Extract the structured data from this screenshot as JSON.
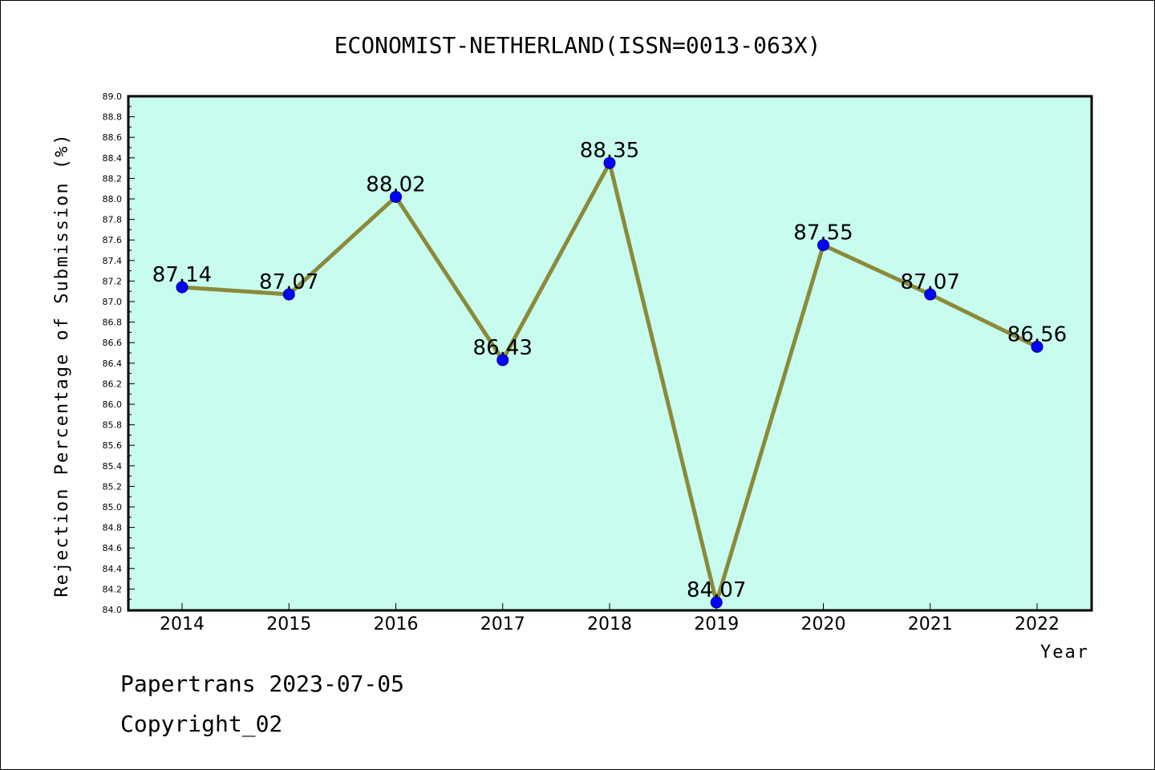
{
  "chart_data": {
    "type": "line",
    "title": "ECONOMIST-NETHERLAND(ISSN=0013-063X)",
    "xlabel": "Year",
    "ylabel": "Rejection Percentage of Submission (%)",
    "x": [
      "2014",
      "2015",
      "2016",
      "2017",
      "2018",
      "2019",
      "2020",
      "2021",
      "2022"
    ],
    "series": [
      {
        "values": [
          87.14,
          87.07,
          88.02,
          86.43,
          88.35,
          84.07,
          87.55,
          87.07,
          86.56
        ],
        "labels": [
          "87.14",
          "87.07",
          "88.02",
          "86.43",
          "88.35",
          "84.07",
          "87.55",
          "87.07",
          "86.56"
        ],
        "line_color": "#8b8a3a",
        "marker_color": "#0000ff"
      }
    ],
    "ylim": [
      84.0,
      89.0
    ],
    "ytick_step": 0.2,
    "plot_background": "#c8fcee",
    "grid": false
  },
  "footer": {
    "line1": "Papertrans 2023-07-05",
    "line2": "Copyright_02"
  }
}
